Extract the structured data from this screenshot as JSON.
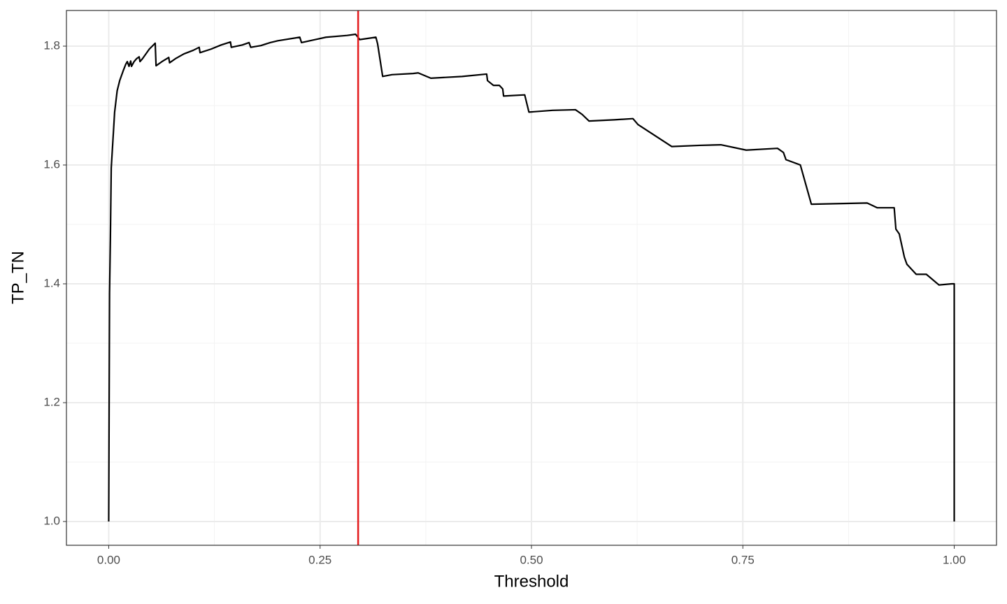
{
  "chart_data": {
    "type": "line",
    "x_label": "Threshold",
    "y_label": "TP_TN",
    "xlim": [
      -0.05,
      1.05
    ],
    "ylim": [
      0.96,
      1.86
    ],
    "xticks": [
      {
        "value": 0,
        "label": "0.00"
      },
      0.25,
      {
        "value": 0.5,
        "label": "0.50"
      },
      0.75,
      {
        "value": 1,
        "label": "1.00"
      }
    ],
    "yticks": [
      {
        "value": 1,
        "label": "1.0"
      },
      1.2,
      1.4,
      1.6,
      1.8
    ],
    "grid": true,
    "color": "#000000",
    "vline": {
      "x": 0.295,
      "color": "#e41a1c"
    },
    "x": [
      0,
      0.001,
      0.002,
      0.003,
      0.005,
      0.007,
      0.01,
      0.013,
      0.017,
      0.02,
      0.022,
      0.024,
      0.026,
      0.027,
      0.03,
      0.033,
      0.036,
      0.037,
      0.04,
      0.048,
      0.055,
      0.056,
      0.063,
      0.071,
      0.072,
      0.079,
      0.089,
      0.1,
      0.107,
      0.108,
      0.121,
      0.133,
      0.144,
      0.145,
      0.158,
      0.166,
      0.168,
      0.18,
      0.191,
      0.2,
      0.226,
      0.228,
      0.244,
      0.257,
      0.282,
      0.292,
      0.297,
      0.316,
      0.318,
      0.324,
      0.335,
      0.36,
      0.366,
      0.381,
      0.418,
      0.447,
      0.448,
      0.455,
      0.462,
      0.466,
      0.467,
      0.492,
      0.497,
      0.525,
      0.552,
      0.56,
      0.568,
      0.598,
      0.62,
      0.626,
      0.666,
      0.699,
      0.724,
      0.754,
      0.791,
      0.798,
      0.801,
      0.818,
      0.831,
      0.897,
      0.909,
      0.929,
      0.931,
      0.935,
      0.941,
      0.944,
      0.955,
      0.967,
      0.982,
      0.997,
      1.0,
      1.0
    ],
    "values": [
      1.0,
      1.384,
      1.478,
      1.595,
      1.642,
      1.689,
      1.725,
      1.742,
      1.758,
      1.769,
      1.774,
      1.766,
      1.775,
      1.766,
      1.774,
      1.779,
      1.782,
      1.774,
      1.779,
      1.795,
      1.805,
      1.767,
      1.774,
      1.781,
      1.772,
      1.779,
      1.787,
      1.793,
      1.798,
      1.789,
      1.795,
      1.802,
      1.807,
      1.798,
      1.802,
      1.806,
      1.798,
      1.801,
      1.806,
      1.809,
      1.815,
      1.806,
      1.811,
      1.815,
      1.818,
      1.82,
      1.811,
      1.815,
      1.804,
      1.749,
      1.752,
      1.754,
      1.755,
      1.746,
      1.749,
      1.753,
      1.742,
      1.734,
      1.734,
      1.728,
      1.716,
      1.718,
      1.689,
      1.692,
      1.693,
      1.685,
      1.674,
      1.676,
      1.678,
      1.668,
      1.631,
      1.633,
      1.634,
      1.625,
      1.628,
      1.621,
      1.609,
      1.6,
      1.534,
      1.536,
      1.528,
      1.528,
      1.492,
      1.484,
      1.445,
      1.433,
      1.416,
      1.416,
      1.398,
      1.4,
      1.4,
      1.0
    ]
  }
}
